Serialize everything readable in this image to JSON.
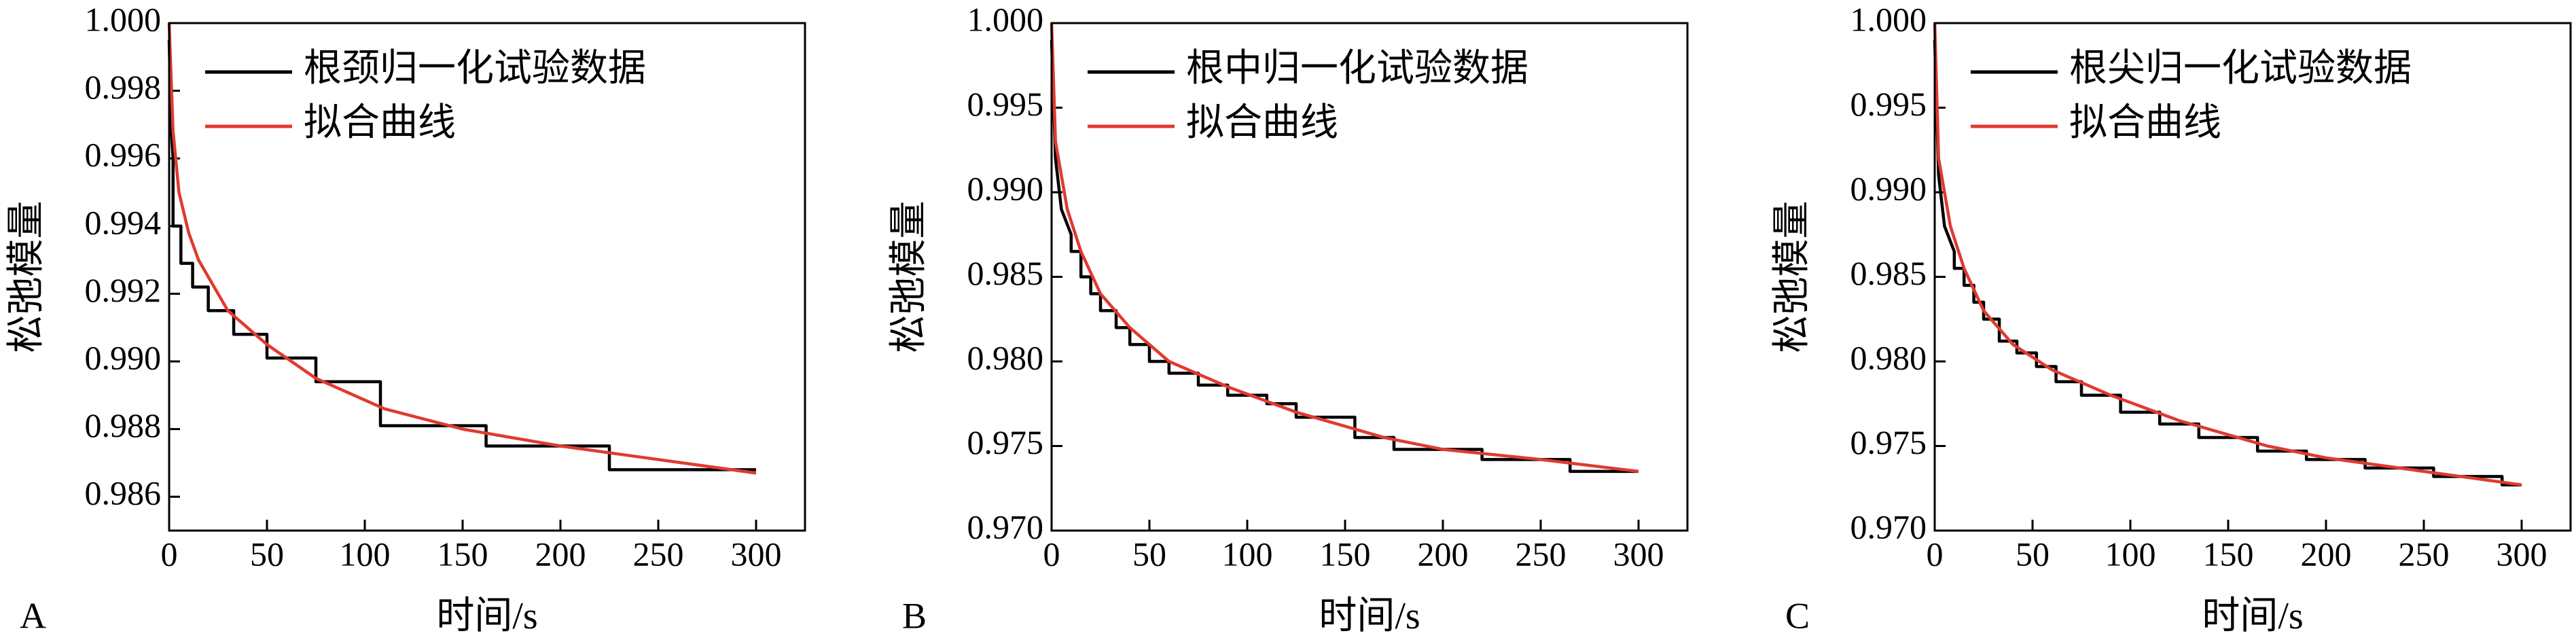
{
  "chart_data": [
    {
      "type": "line",
      "panel_label": "A",
      "xlabel": "时间/s",
      "ylabel": "松弛模量",
      "xlim": [
        0,
        325
      ],
      "ylim": [
        0.985,
        1.0
      ],
      "xticks": [
        0,
        50,
        100,
        150,
        200,
        250,
        300
      ],
      "yticks": [
        0.986,
        0.988,
        {
          "value": 0.99,
          "label": "0.990"
        },
        0.992,
        0.994,
        0.996,
        0.998,
        {
          "value": 1.0,
          "label": "1.000"
        }
      ],
      "legend": "upper left",
      "series": [
        {
          "name": "根颈归一化试验数据",
          "color": "#000000",
          "x": [
            0,
            1,
            2,
            2,
            6,
            6,
            12,
            12,
            20,
            20,
            33,
            33,
            50,
            50,
            75,
            75,
            108,
            108,
            162,
            162,
            225,
            225,
            300
          ],
          "values": [
            0.9995,
            0.997,
            0.996,
            0.994,
            0.994,
            0.9929,
            0.9929,
            0.9922,
            0.9922,
            0.9915,
            0.9915,
            0.9908,
            0.9908,
            0.9901,
            0.9901,
            0.9894,
            0.9894,
            0.9881,
            0.9881,
            0.9875,
            0.9875,
            0.9868,
            0.9868
          ]
        },
        {
          "name": "拟合曲线",
          "color": "#e03a2f",
          "x": [
            0,
            2,
            5,
            10,
            15,
            30,
            50,
            75,
            110,
            150,
            200,
            250,
            300
          ],
          "values": [
            1.0,
            0.9968,
            0.995,
            0.9938,
            0.993,
            0.9915,
            0.9905,
            0.9895,
            0.9886,
            0.988,
            0.9875,
            0.9871,
            0.9867
          ]
        }
      ]
    },
    {
      "type": "line",
      "panel_label": "B",
      "xlabel": "时间/s",
      "ylabel": "松弛模量",
      "xlim": [
        0,
        325
      ],
      "ylim": [
        0.97,
        1.0
      ],
      "xticks": [
        0,
        50,
        100,
        150,
        200,
        250,
        300
      ],
      "yticks": [
        {
          "value": 0.97,
          "label": "0.970"
        },
        0.975,
        {
          "value": 0.98,
          "label": "0.980"
        },
        0.985,
        {
          "value": 0.99,
          "label": "0.990"
        },
        0.995,
        {
          "value": 1.0,
          "label": "1.000"
        }
      ],
      "legend": "upper left",
      "series": [
        {
          "name": "根中归一化试验数据",
          "color": "#000000",
          "x": [
            0,
            2,
            5,
            10,
            10,
            15,
            15,
            20,
            20,
            25,
            25,
            33,
            33,
            40,
            40,
            50,
            50,
            60,
            60,
            75,
            75,
            90,
            90,
            110,
            110,
            125,
            125,
            155,
            155,
            175,
            175,
            220,
            220,
            265,
            265,
            300
          ],
          "values": [
            0.999,
            0.992,
            0.989,
            0.9875,
            0.9865,
            0.9865,
            0.985,
            0.985,
            0.984,
            0.984,
            0.983,
            0.983,
            0.982,
            0.982,
            0.981,
            0.981,
            0.98,
            0.98,
            0.9793,
            0.9793,
            0.9786,
            0.9786,
            0.978,
            0.978,
            0.9775,
            0.9775,
            0.9767,
            0.9767,
            0.9755,
            0.9755,
            0.9748,
            0.9748,
            0.9742,
            0.9742,
            0.9735,
            0.9735
          ]
        },
        {
          "name": "拟合曲线",
          "color": "#e03a2f",
          "x": [
            0,
            2,
            8,
            15,
            25,
            40,
            60,
            90,
            125,
            170,
            200,
            250,
            300
          ],
          "values": [
            1.0,
            0.993,
            0.989,
            0.9865,
            0.984,
            0.982,
            0.98,
            0.9785,
            0.977,
            0.9755,
            0.9748,
            0.9742,
            0.9735
          ]
        }
      ]
    },
    {
      "type": "line",
      "panel_label": "C",
      "xlabel": "时间/s",
      "ylabel": "松弛模量",
      "xlim": [
        0,
        325
      ],
      "ylim": [
        0.97,
        1.0
      ],
      "xticks": [
        0,
        50,
        100,
        150,
        200,
        250,
        300
      ],
      "yticks": [
        {
          "value": 0.97,
          "label": "0.970"
        },
        0.975,
        {
          "value": 0.98,
          "label": "0.980"
        },
        0.985,
        {
          "value": 0.99,
          "label": "0.990"
        },
        0.995,
        {
          "value": 1.0,
          "label": "1.000"
        }
      ],
      "legend": "upper left",
      "series": [
        {
          "name": "根尖归一化试验数据",
          "color": "#000000",
          "x": [
            0,
            2,
            5,
            10,
            10,
            15,
            15,
            20,
            20,
            25,
            25,
            33,
            33,
            42,
            42,
            52,
            52,
            62,
            62,
            75,
            75,
            95,
            95,
            115,
            115,
            135,
            135,
            165,
            165,
            190,
            190,
            220,
            220,
            255,
            255,
            290,
            290,
            300
          ],
          "values": [
            0.999,
            0.991,
            0.988,
            0.9865,
            0.9855,
            0.9855,
            0.9845,
            0.9845,
            0.9835,
            0.9835,
            0.9825,
            0.9825,
            0.9812,
            0.9812,
            0.9805,
            0.9805,
            0.9797,
            0.9797,
            0.9788,
            0.9788,
            0.978,
            0.978,
            0.977,
            0.977,
            0.9763,
            0.9763,
            0.9755,
            0.9755,
            0.9747,
            0.9747,
            0.9742,
            0.9742,
            0.9737,
            0.9737,
            0.9732,
            0.9732,
            0.9727,
            0.9727
          ]
        },
        {
          "name": "拟合曲线",
          "color": "#e03a2f",
          "x": [
            0,
            2,
            8,
            15,
            25,
            40,
            60,
            90,
            125,
            170,
            200,
            250,
            300
          ],
          "values": [
            1.0,
            0.992,
            0.988,
            0.9855,
            0.983,
            0.981,
            0.9795,
            0.978,
            0.9765,
            0.975,
            0.9743,
            0.9735,
            0.9727
          ]
        }
      ]
    }
  ]
}
